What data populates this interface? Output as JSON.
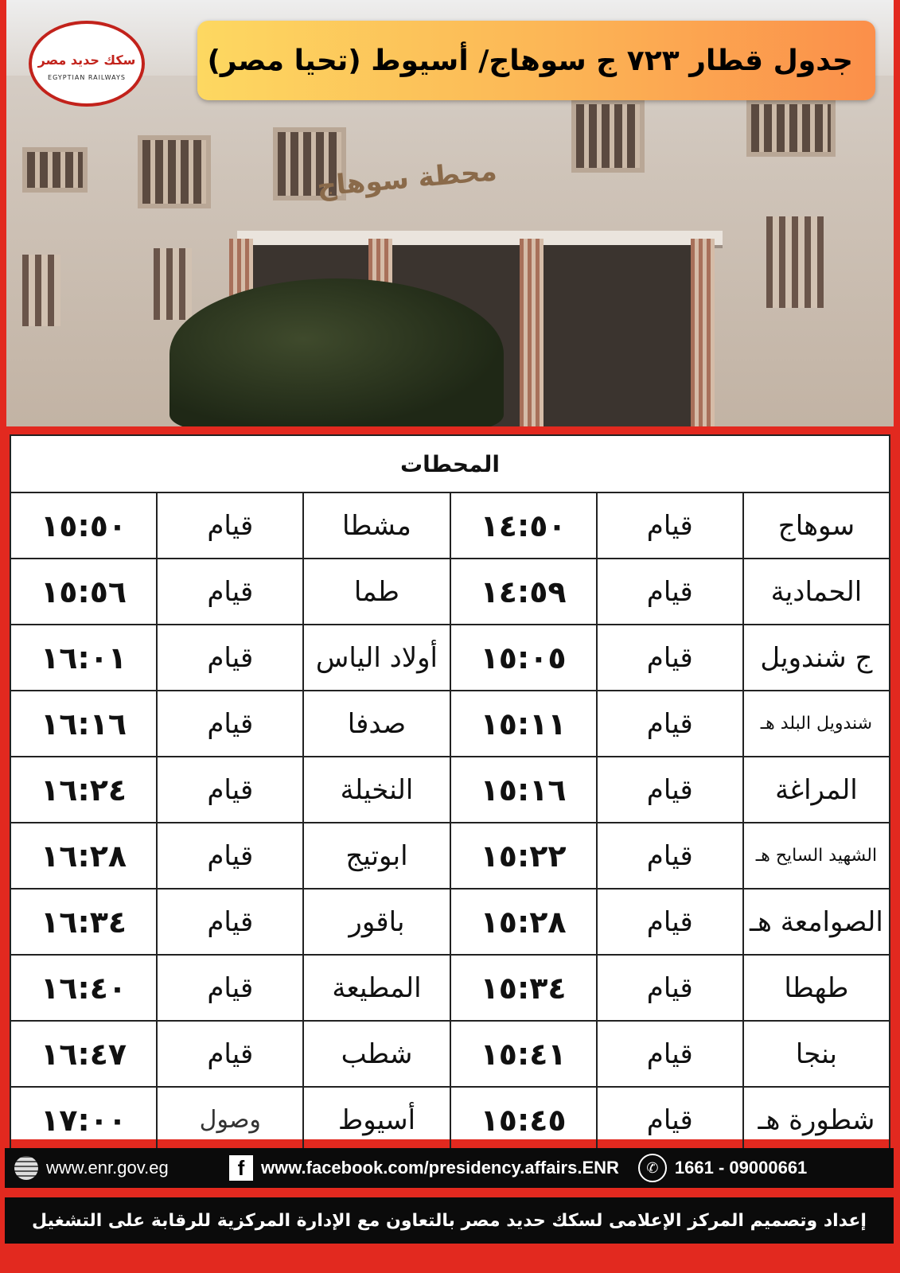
{
  "header": {
    "title": "جدول قطار ٧٢٣ ج سوهاج/ أسيوط (تحيا مصر)",
    "logo_text": "EGYPTIAN RAILWAYS",
    "logo_ar": "سكك حديد مصر",
    "building_sign": "محطة سوهاج"
  },
  "table": {
    "header": "المحطات",
    "rows": [
      {
        "station_a": "سوهاج",
        "status_a": "قيام",
        "time_a": "١٤:٥٠",
        "station_b": "مشطا",
        "status_b": "قيام",
        "time_b": "١٥:٥٠"
      },
      {
        "station_a": "الحمادية",
        "status_a": "قيام",
        "time_a": "١٤:٥٩",
        "station_b": "طما",
        "status_b": "قيام",
        "time_b": "١٥:٥٦"
      },
      {
        "station_a": "ج شندويل",
        "status_a": "قيام",
        "time_a": "١٥:٠٥",
        "station_b": "أولاد الياس",
        "status_b": "قيام",
        "time_b": "١٦:٠١"
      },
      {
        "station_a": "شندويل البلد هـ",
        "status_a": "قيام",
        "time_a": "١٥:١١",
        "station_b": "صدفا",
        "status_b": "قيام",
        "time_b": "١٦:١٦"
      },
      {
        "station_a": "المراغة",
        "status_a": "قيام",
        "time_a": "١٥:١٦",
        "station_b": "النخيلة",
        "status_b": "قيام",
        "time_b": "١٦:٢٤"
      },
      {
        "station_a": "الشهيد السايح هـ",
        "status_a": "قيام",
        "time_a": "١٥:٢٢",
        "station_b": "ابوتيج",
        "status_b": "قيام",
        "time_b": "١٦:٢٨"
      },
      {
        "station_a": "الصوامعة هـ",
        "status_a": "قيام",
        "time_a": "١٥:٢٨",
        "station_b": "باقور",
        "status_b": "قيام",
        "time_b": "١٦:٣٤"
      },
      {
        "station_a": "طهطا",
        "status_a": "قيام",
        "time_a": "١٥:٣٤",
        "station_b": "المطيعة",
        "status_b": "قيام",
        "time_b": "١٦:٤٠"
      },
      {
        "station_a": "بنجا",
        "status_a": "قيام",
        "time_a": "١٥:٤١",
        "station_b": "شطب",
        "status_b": "قيام",
        "time_b": "١٦:٤٧"
      },
      {
        "station_a": "شطورة هـ",
        "status_a": "قيام",
        "time_a": "١٥:٤٥",
        "station_b": "أسيوط",
        "status_b": "وصول",
        "time_b": "١٧:٠٠"
      }
    ]
  },
  "footer": {
    "website": "www.enr.gov.eg",
    "facebook": "www.facebook.com/presidency.affairs.ENR",
    "phone": "1661 - 09000661",
    "credit": "إعداد وتصميم المركز الإعلامى لسكك حديد مصر بالتعاون مع الإدارة المركزية للرقابة على التشغيل"
  },
  "colors": {
    "frame": "#e2291f",
    "banner_start": "#fdd861",
    "banner_end": "#fb8f4a",
    "footer_bg": "#0b0b0b"
  }
}
